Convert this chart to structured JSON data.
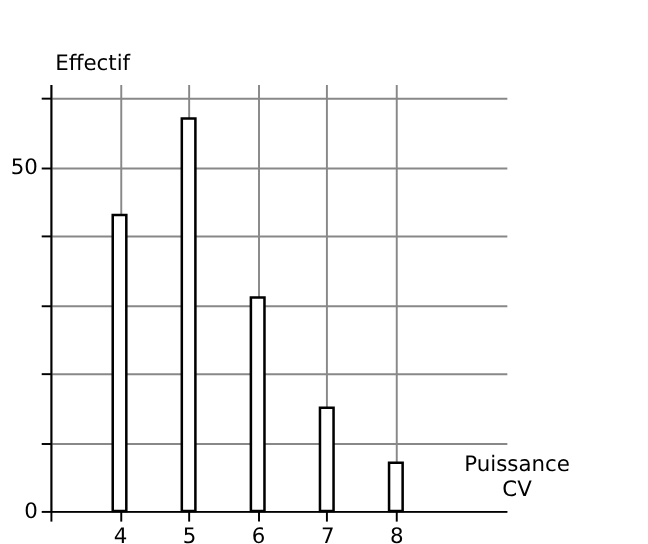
{
  "chart_data": {
    "type": "bar",
    "xlabel": "Puissance\nCV",
    "ylabel": "Effectif",
    "x": [
      4,
      5,
      6,
      7,
      8
    ],
    "series": [
      {
        "color": "#000000",
        "values": [
          43,
          57,
          31,
          15,
          7
        ]
      }
    ],
    "xlim": [
      3,
      9.6
    ],
    "ylim": [
      0,
      62
    ],
    "xticks": [
      {
        "value": 3,
        "label": null
      },
      4,
      5,
      6,
      7,
      8
    ],
    "yticks": [
      0,
      {
        "value": 10,
        "label": null
      },
      {
        "value": 20,
        "label": null
      },
      {
        "value": 30,
        "label": null
      },
      {
        "value": 40,
        "label": null
      },
      50,
      {
        "value": 60,
        "label": null
      }
    ],
    "grid": true
  }
}
